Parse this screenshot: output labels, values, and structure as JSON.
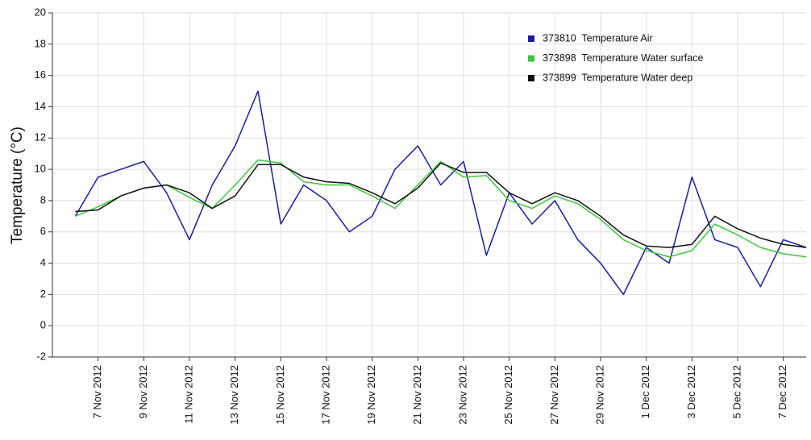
{
  "chart_data": {
    "type": "line",
    "y_label": "Temperature (°C)",
    "x": [
      "2012-11-06",
      "2012-11-07",
      "2012-11-08",
      "2012-11-09",
      "2012-11-10",
      "2012-11-11",
      "2012-11-12",
      "2012-11-13",
      "2012-11-14",
      "2012-11-15",
      "2012-11-16",
      "2012-11-17",
      "2012-11-18",
      "2012-11-19",
      "2012-11-20",
      "2012-11-21",
      "2012-11-22",
      "2012-11-23",
      "2012-11-24",
      "2012-11-25",
      "2012-11-26",
      "2012-11-27",
      "2012-11-28",
      "2012-11-29",
      "2012-11-30",
      "2012-12-01",
      "2012-12-02",
      "2012-12-03",
      "2012-12-04",
      "2012-12-05",
      "2012-12-06",
      "2012-12-07",
      "2012-12-08"
    ],
    "series": [
      {
        "name": "373810  Temperature Air",
        "color": "#1c1ca0",
        "values": [
          7,
          9.5,
          10,
          10.5,
          8.5,
          5.5,
          9,
          11.5,
          15,
          6.5,
          9,
          8,
          6,
          7,
          10,
          11.5,
          9,
          10.5,
          4.5,
          8.5,
          6.5,
          8,
          5.5,
          4,
          2,
          5,
          4,
          9.5,
          5.5,
          5,
          2.5,
          5.5,
          5
        ]
      },
      {
        "name": "373898  Temperature Water surface",
        "color": "#3cc83c",
        "values": [
          7,
          7.6,
          8.3,
          8.8,
          9,
          8.2,
          7.5,
          9,
          10.6,
          10.4,
          9.2,
          9,
          9,
          8.3,
          7.5,
          9,
          10.5,
          9.5,
          9.6,
          8,
          7.5,
          8.3,
          7.8,
          6.8,
          5.5,
          4.8,
          4.4,
          4.8,
          6.5,
          5.8,
          5,
          4.6,
          4.4
        ]
      },
      {
        "name": "373899  Temperature Water deep",
        "color": "#111111",
        "values": [
          7.3,
          7.4,
          8.3,
          8.8,
          9,
          8.5,
          7.5,
          8.3,
          10.3,
          10.3,
          9.5,
          9.2,
          9.1,
          8.5,
          7.8,
          8.8,
          10.4,
          9.8,
          9.8,
          8.5,
          7.8,
          8.5,
          8,
          7,
          5.8,
          5.1,
          5,
          5.2,
          7,
          6.2,
          5.6,
          5.2,
          5
        ]
      }
    ],
    "xlim": [
      "2012-11-05",
      "2012-12-08"
    ],
    "xticks": [
      {
        "value": "2012-11-07",
        "label": "7 Nov 2012"
      },
      {
        "value": "2012-11-09",
        "label": "9 Nov 2012"
      },
      {
        "value": "2012-11-11",
        "label": "11 Nov 2012"
      },
      {
        "value": "2012-11-13",
        "label": "13 Nov 2012"
      },
      {
        "value": "2012-11-15",
        "label": "15 Nov 2012"
      },
      {
        "value": "2012-11-17",
        "label": "17 Nov 2012"
      },
      {
        "value": "2012-11-19",
        "label": "19 Nov 2012"
      },
      {
        "value": "2012-11-21",
        "label": "21 Nov 2012"
      },
      {
        "value": "2012-11-23",
        "label": "23 Nov 2012"
      },
      {
        "value": "2012-11-25",
        "label": "25 Nov 2012"
      },
      {
        "value": "2012-11-27",
        "label": "27 Nov 2012"
      },
      {
        "value": "2012-11-29",
        "label": "29 Nov 2012"
      },
      {
        "value": "2012-12-01",
        "label": "1 Dec 2012"
      },
      {
        "value": "2012-12-03",
        "label": "3 Dec 2012"
      },
      {
        "value": "2012-12-05",
        "label": "5 Dec 2012"
      },
      {
        "value": "2012-12-07",
        "label": "7 Dec 2012"
      }
    ],
    "ylim": [
      -2,
      20
    ],
    "yticks": [
      -2,
      0,
      2,
      4,
      6,
      8,
      10,
      12,
      14,
      16,
      18,
      20
    ],
    "grid": true,
    "legend": "top-right"
  }
}
